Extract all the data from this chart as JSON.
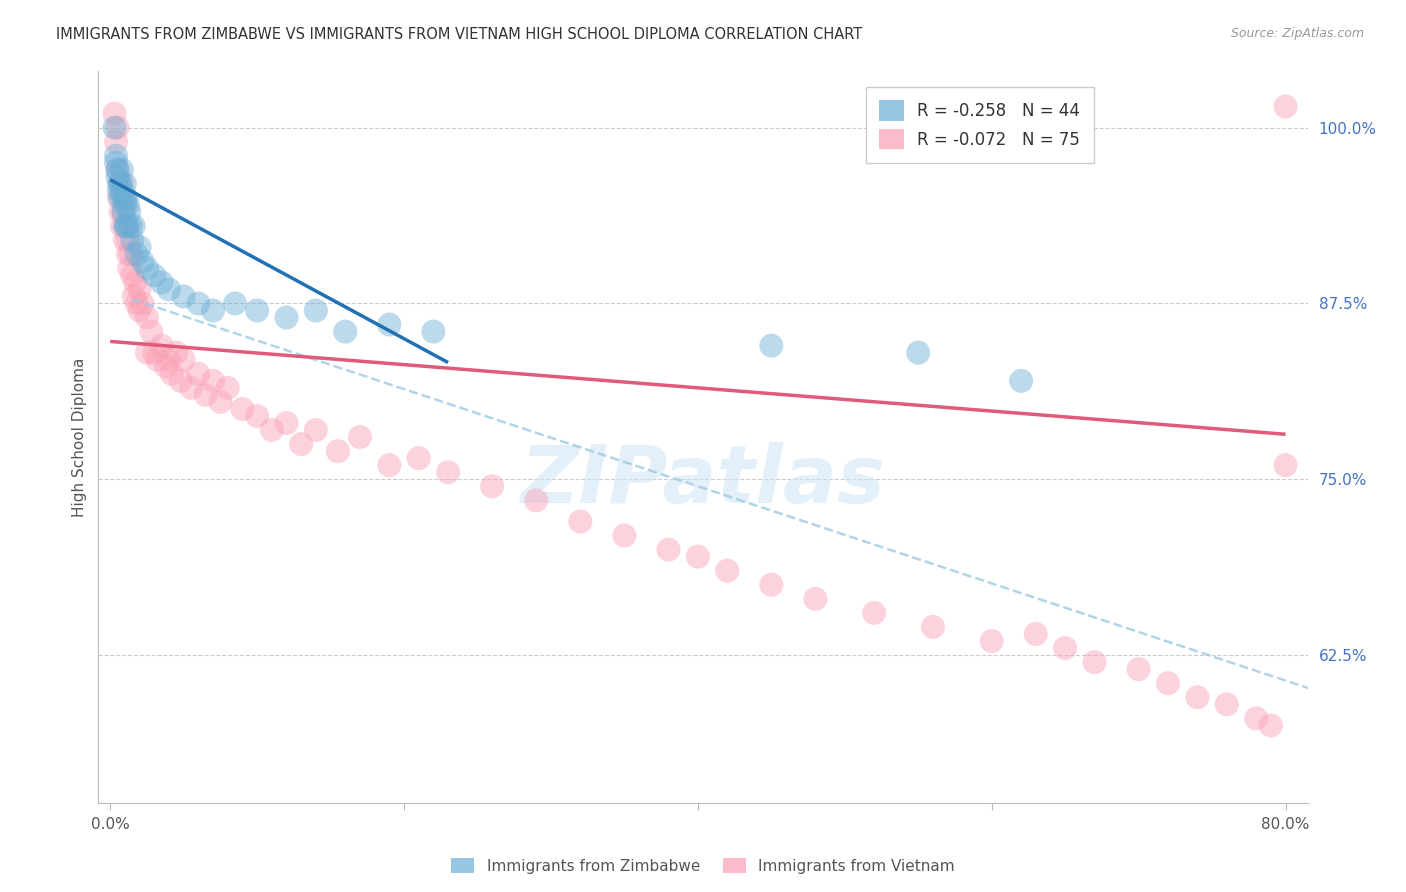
{
  "title": "IMMIGRANTS FROM ZIMBABWE VS IMMIGRANTS FROM VIETNAM HIGH SCHOOL DIPLOMA CORRELATION CHART",
  "source": "Source: ZipAtlas.com",
  "ylabel": "High School Diploma",
  "ytick_labels": [
    "100.0%",
    "87.5%",
    "75.0%",
    "62.5%"
  ],
  "ytick_values": [
    1.0,
    0.875,
    0.75,
    0.625
  ],
  "xlim": [
    0.0,
    0.8
  ],
  "ylim": [
    0.52,
    1.04
  ],
  "legend_zimbabwe": "R = -0.258   N = 44",
  "legend_vietnam": "R = -0.072   N = 75",
  "color_zimbabwe": "#6baed6",
  "color_vietnam": "#fa9fb5",
  "color_line_zimbabwe": "#2171b5",
  "color_line_vietnam": "#e05a7a",
  "color_line_dashed": "#9ecae1",
  "watermark": "ZIPatlas",
  "zimbabwe_x": [
    0.003,
    0.004,
    0.004,
    0.005,
    0.005,
    0.006,
    0.006,
    0.007,
    0.007,
    0.008,
    0.008,
    0.009,
    0.009,
    0.01,
    0.01,
    0.01,
    0.011,
    0.011,
    0.012,
    0.012,
    0.013,
    0.014,
    0.015,
    0.016,
    0.018,
    0.02,
    0.022,
    0.025,
    0.03,
    0.035,
    0.04,
    0.05,
    0.06,
    0.07,
    0.085,
    0.1,
    0.12,
    0.14,
    0.16,
    0.19,
    0.22,
    0.45,
    0.55,
    0.62
  ],
  "zimbabwe_y": [
    1.0,
    0.98,
    0.975,
    0.97,
    0.965,
    0.96,
    0.955,
    0.96,
    0.95,
    0.97,
    0.955,
    0.94,
    0.95,
    0.96,
    0.945,
    0.93,
    0.95,
    0.93,
    0.945,
    0.93,
    0.94,
    0.93,
    0.92,
    0.93,
    0.91,
    0.915,
    0.905,
    0.9,
    0.895,
    0.89,
    0.885,
    0.88,
    0.875,
    0.87,
    0.875,
    0.87,
    0.865,
    0.87,
    0.855,
    0.86,
    0.855,
    0.845,
    0.84,
    0.82
  ],
  "vietnam_x": [
    0.003,
    0.004,
    0.005,
    0.005,
    0.006,
    0.007,
    0.008,
    0.008,
    0.009,
    0.01,
    0.01,
    0.011,
    0.012,
    0.012,
    0.013,
    0.014,
    0.015,
    0.016,
    0.017,
    0.018,
    0.02,
    0.02,
    0.022,
    0.025,
    0.025,
    0.028,
    0.03,
    0.032,
    0.035,
    0.038,
    0.04,
    0.042,
    0.045,
    0.048,
    0.05,
    0.055,
    0.06,
    0.065,
    0.07,
    0.075,
    0.08,
    0.09,
    0.1,
    0.11,
    0.12,
    0.13,
    0.14,
    0.155,
    0.17,
    0.19,
    0.21,
    0.23,
    0.26,
    0.29,
    0.32,
    0.35,
    0.38,
    0.4,
    0.42,
    0.45,
    0.48,
    0.52,
    0.56,
    0.6,
    0.63,
    0.65,
    0.67,
    0.7,
    0.72,
    0.74,
    0.76,
    0.78,
    0.79,
    0.8,
    0.8
  ],
  "vietnam_y": [
    1.01,
    0.99,
    1.0,
    0.97,
    0.95,
    0.94,
    0.96,
    0.93,
    0.94,
    0.95,
    0.92,
    0.93,
    0.91,
    0.92,
    0.9,
    0.91,
    0.895,
    0.88,
    0.89,
    0.875,
    0.885,
    0.87,
    0.875,
    0.865,
    0.84,
    0.855,
    0.84,
    0.835,
    0.845,
    0.83,
    0.835,
    0.825,
    0.84,
    0.82,
    0.835,
    0.815,
    0.825,
    0.81,
    0.82,
    0.805,
    0.815,
    0.8,
    0.795,
    0.785,
    0.79,
    0.775,
    0.785,
    0.77,
    0.78,
    0.76,
    0.765,
    0.755,
    0.745,
    0.735,
    0.72,
    0.71,
    0.7,
    0.695,
    0.685,
    0.675,
    0.665,
    0.655,
    0.645,
    0.635,
    0.64,
    0.63,
    0.62,
    0.615,
    0.605,
    0.595,
    0.59,
    0.58,
    0.575,
    0.76,
    1.015
  ]
}
